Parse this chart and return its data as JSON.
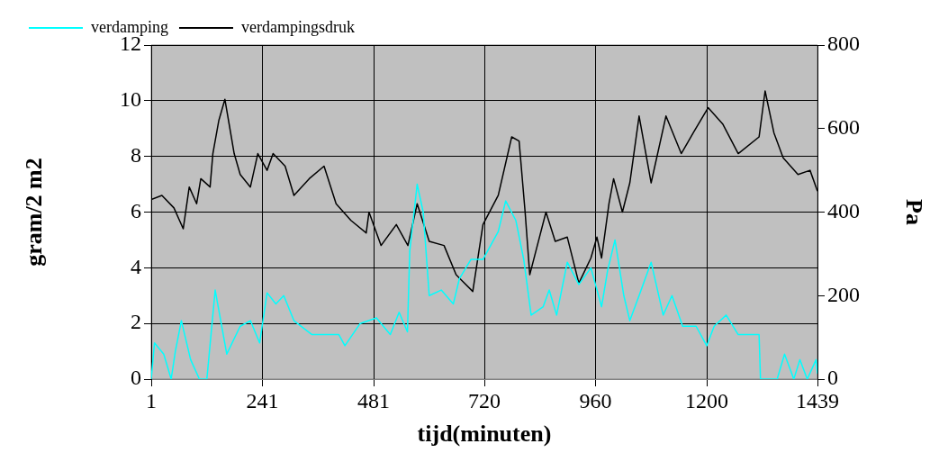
{
  "chart_data": {
    "type": "line",
    "xlabel": "tijd(minuten)",
    "ylabel": "gram/2 m2",
    "y2label": "Pa",
    "xlim": [
      1,
      1439
    ],
    "xticks": [
      1,
      241,
      481,
      720,
      960,
      1200,
      1439
    ],
    "ylim": [
      0,
      12
    ],
    "yticks": [
      0,
      2,
      4,
      6,
      8,
      10,
      12
    ],
    "y2lim": [
      0,
      800
    ],
    "y2ticks": [
      0,
      200,
      400,
      600,
      800
    ],
    "grid": true,
    "legend": "top",
    "marker": "none",
    "line_style": "solid",
    "series": [
      {
        "name": "verdamping",
        "color": "#00ffff",
        "x": [
          1,
          8,
          28,
          44,
          53,
          66,
          86,
          105,
          121,
          139,
          164,
          193,
          215,
          235,
          251,
          270,
          287,
          309,
          348,
          406,
          419,
          452,
          487,
          517,
          536,
          554,
          559,
          575,
          588,
          601,
          627,
          653,
          666,
          691,
          717,
          750,
          766,
          788,
          805,
          821,
          847,
          860,
          876,
          899,
          924,
          950,
          973,
          986,
          1002,
          1021,
          1034,
          1054,
          1080,
          1106,
          1125,
          1148,
          1177,
          1200,
          1216,
          1242,
          1268,
          1313,
          1316,
          1352,
          1368,
          1388,
          1401,
          1417,
          1436,
          1439
        ],
        "values": [
          0,
          1.3,
          0.9,
          0,
          1,
          2.1,
          0.7,
          0,
          0,
          3.2,
          0.9,
          1.9,
          2.1,
          1.3,
          3.1,
          2.7,
          3,
          2.1,
          1.6,
          1.6,
          1.2,
          2,
          2.2,
          1.6,
          2.4,
          1.7,
          4.6,
          7,
          6,
          3,
          3.2,
          2.7,
          3.6,
          4.3,
          4.3,
          5.3,
          6.4,
          5.7,
          4.3,
          2.3,
          2.6,
          3.2,
          2.3,
          4.2,
          3.4,
          4,
          2.6,
          3.9,
          5,
          3,
          2.1,
          3,
          4.2,
          2.3,
          3,
          1.9,
          1.9,
          1.2,
          1.9,
          2.3,
          1.6,
          1.6,
          0,
          0,
          0.9,
          0,
          0.7,
          0,
          0.7,
          0.2
        ]
      },
      {
        "name": "verdampingsdruk",
        "color": "#000000",
        "axis": "y2",
        "x": [
          1,
          24,
          50,
          70,
          83,
          99,
          108,
          128,
          134,
          147,
          160,
          180,
          193,
          215,
          231,
          251,
          264,
          290,
          309,
          342,
          374,
          400,
          432,
          465,
          471,
          497,
          530,
          555,
          575,
          601,
          633,
          659,
          695,
          717,
          750,
          779,
          795,
          808,
          818,
          853,
          873,
          899,
          924,
          950,
          963,
          973,
          989,
          999,
          1018,
          1034,
          1054,
          1080,
          1112,
          1145,
          1171,
          1203,
          1235,
          1268,
          1313,
          1326,
          1345,
          1365,
          1397,
          1423,
          1439
        ],
        "values": [
          430,
          440,
          410,
          360,
          460,
          420,
          480,
          460,
          540,
          620,
          670,
          540,
          490,
          460,
          540,
          500,
          540,
          510,
          440,
          480,
          510,
          420,
          380,
          350,
          400,
          320,
          370,
          320,
          420,
          330,
          320,
          250,
          210,
          370,
          440,
          580,
          570,
          400,
          250,
          400,
          330,
          340,
          230,
          290,
          340,
          290,
          420,
          480,
          400,
          470,
          630,
          470,
          630,
          540,
          590,
          650,
          610,
          540,
          580,
          690,
          590,
          530,
          490,
          500,
          450
        ]
      }
    ]
  }
}
